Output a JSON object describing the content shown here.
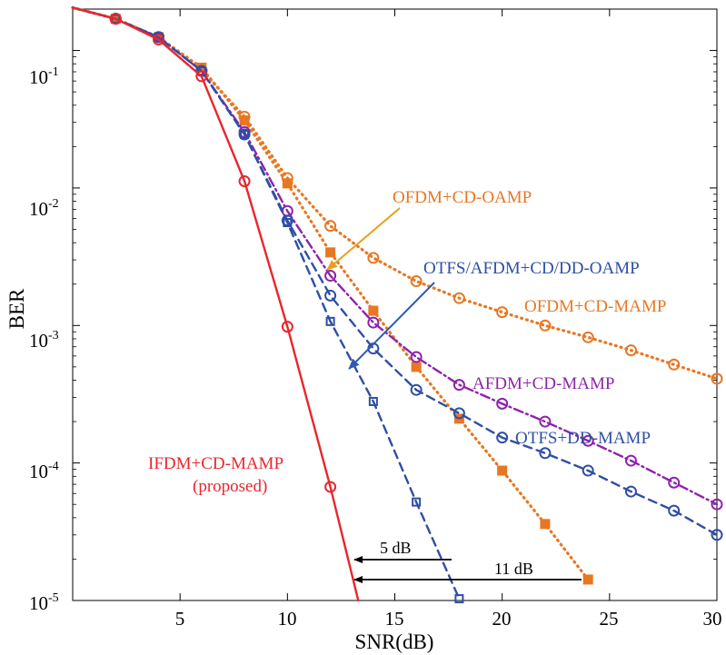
{
  "chart_data": {
    "type": "line",
    "xlabel": "SNR(dB)",
    "ylabel": "BER",
    "xlim": [
      0,
      30
    ],
    "ylim": [
      1e-05,
      0.2
    ],
    "yscale": "log",
    "grid": false,
    "xticks": [
      5,
      10,
      15,
      20,
      25,
      30
    ],
    "yticks": [
      {
        "value": 0.1,
        "base": "10",
        "exp": "-1"
      },
      {
        "value": 0.01,
        "base": "10",
        "exp": "-2"
      },
      {
        "value": 0.001,
        "base": "10",
        "exp": "-3"
      },
      {
        "value": 0.0001,
        "base": "10",
        "exp": "-4"
      },
      {
        "value": 1e-05,
        "base": "10",
        "exp": "-5"
      }
    ],
    "series": [
      {
        "color": "#e87722",
        "style": "dotted",
        "marker": "circle",
        "x": [
          0,
          2,
          4,
          6,
          8,
          10,
          12,
          14,
          16,
          18,
          20,
          22,
          24,
          26,
          28,
          30
        ],
        "y": [
          0.205,
          0.17,
          0.125,
          0.072,
          0.033,
          0.0118,
          0.0053,
          0.0031,
          0.0021,
          0.00158,
          0.00125,
          0.001,
          0.00082,
          0.00066,
          0.00052,
          0.00041
        ]
      },
      {
        "color": "#e87722",
        "style": "dotted",
        "marker": "square",
        "x": [
          0,
          2,
          4,
          6,
          8,
          10,
          12,
          14,
          16,
          18,
          20,
          22,
          24
        ],
        "y": [
          0.205,
          0.17,
          0.125,
          0.075,
          0.031,
          0.0108,
          0.0034,
          0.00128,
          0.0005,
          0.00021,
          8.8e-05,
          3.6e-05,
          1.42e-05
        ]
      },
      {
        "color": "#8e24aa",
        "style": "dashdot",
        "marker": "circle",
        "x": [
          0,
          2,
          4,
          6,
          8,
          10,
          12,
          14,
          16,
          18,
          20,
          22,
          24,
          26,
          28,
          30
        ],
        "y": [
          0.205,
          0.17,
          0.125,
          0.071,
          0.0255,
          0.0068,
          0.0023,
          0.00105,
          0.00059,
          0.00037,
          0.00027,
          0.0002,
          0.000145,
          0.000104,
          7.2e-05,
          5e-05
        ]
      },
      {
        "color": "#2f4fa5",
        "style": "dashed",
        "marker": "circle",
        "x": [
          0,
          2,
          4,
          6,
          8,
          10,
          12,
          14,
          16,
          18,
          20,
          22,
          24,
          26,
          28,
          30
        ],
        "y": [
          0.205,
          0.17,
          0.125,
          0.071,
          0.0245,
          0.0058,
          0.00165,
          0.00068,
          0.00034,
          0.00023,
          0.000153,
          0.000118,
          8.8e-05,
          6.2e-05,
          4.5e-05,
          3e-05
        ]
      },
      {
        "color": "#2f4fa5",
        "style": "dashed",
        "marker": "square-small",
        "x": [
          0,
          2,
          4,
          6,
          8,
          10,
          12,
          14,
          16,
          18
        ],
        "y": [
          0.205,
          0.17,
          0.125,
          0.071,
          0.0245,
          0.0056,
          0.00107,
          0.00028,
          5.2e-05,
          1.03e-05
        ]
      },
      {
        "color": "#e8262d",
        "style": "solid",
        "marker": "circle",
        "x": [
          0,
          2,
          4,
          6,
          8,
          10,
          12,
          13.3
        ],
        "y": [
          0.205,
          0.17,
          0.12,
          0.065,
          0.0112,
          0.00098,
          6.7e-05,
          1e-05
        ]
      }
    ],
    "annotations": [
      {
        "text": "OFDM+CD-OAMP",
        "color": "#e87722"
      },
      {
        "text": "OTFS/AFDM+CD/DD-OAMP",
        "color": "#2f4fa5"
      },
      {
        "text": "OFDM+CD-MAMP",
        "color": "#e87722"
      },
      {
        "text": "AFDM+CD-MAMP",
        "color": "#8e24aa"
      },
      {
        "text": "OTFS+DD-MAMP",
        "color": "#2f4fa5"
      },
      {
        "text": "IFDM+CD-MAMP",
        "color": "#e8262d"
      },
      {
        "text": "(proposed)",
        "color": "#e8262d"
      },
      {
        "text": "5 dB",
        "color": "#000000"
      },
      {
        "text": "11 dB",
        "color": "#000000"
      }
    ]
  }
}
